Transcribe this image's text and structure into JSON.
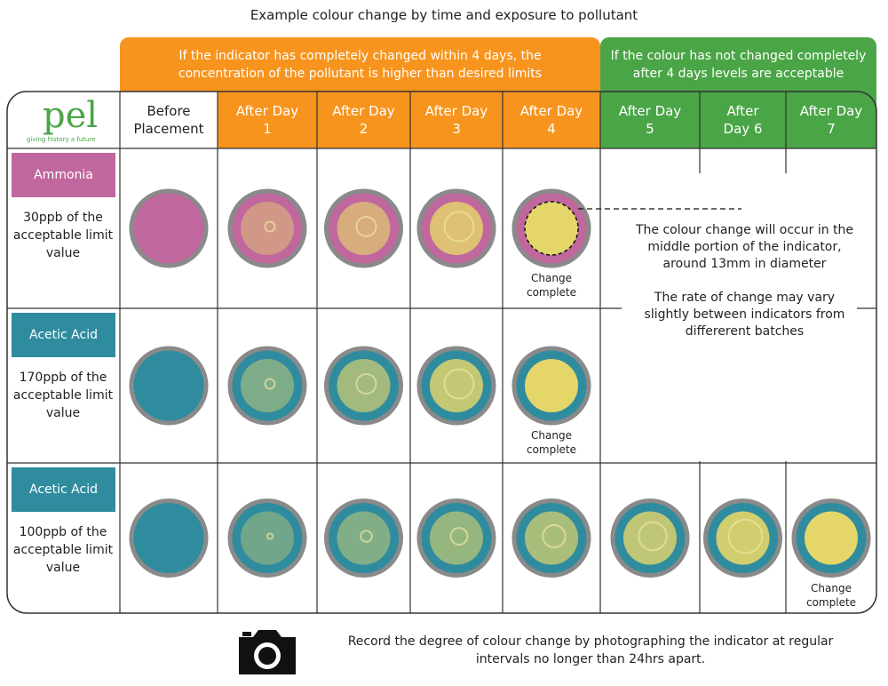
{
  "title": "Example colour change by time and exposure to pollutant",
  "banners": [
    {
      "text": "If the indicator has completely changed within 4 days, the concentration of the pollutant is higher than desired limits"
    },
    {
      "text": "If the colour has not changed completely after 4 days levels are acceptable"
    }
  ],
  "logo": {
    "name": "pel",
    "tagline": "giving history a future"
  },
  "columns": [
    "Before Placement",
    "After Day 1",
    "After Day 2",
    "After Day 3",
    "After Day 4",
    "After Day 5",
    "After Day 6",
    "After Day 7"
  ],
  "rows": [
    {
      "label": "Ammonia",
      "description": "30ppb of the acceptable limit value",
      "color": "#c0679e",
      "cells": [
        null,
        null,
        null,
        null,
        "Change complete"
      ]
    },
    {
      "label": "Acetic Acid",
      "description": "170ppb of the acceptable limit value",
      "color": "#2f8c9f",
      "cells": [
        null,
        null,
        null,
        null,
        "Change complete"
      ]
    },
    {
      "label": "Acetic Acid",
      "description": "100ppb of the acceptable limit value",
      "color": "#2f8c9f",
      "cells": [
        null,
        null,
        null,
        null,
        null,
        null,
        null,
        "Change complete"
      ]
    }
  ],
  "note": [
    "The colour change will occur in the middle portion of the indicator, around 13mm in diameter",
    "The rate of change may vary slightly between indicators from differerent batches"
  ],
  "footer": "Record the degree of colour change by photographing the indicator at regular intervals no longer than 24hrs apart."
}
